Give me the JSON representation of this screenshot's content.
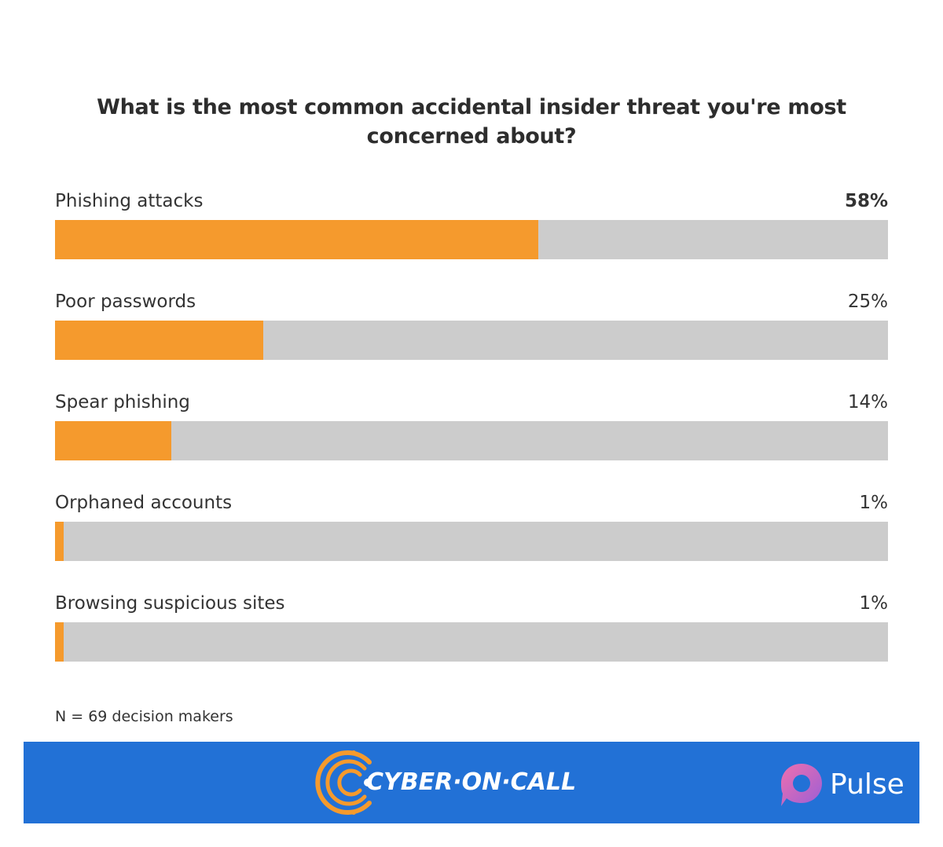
{
  "chart_data": {
    "type": "bar",
    "orientation": "horizontal",
    "title": "What is the most common accidental insider threat you're most concerned about?",
    "categories": [
      "Phishing attacks",
      "Poor passwords",
      "Spear phishing",
      "Orphaned accounts",
      "Browsing suspicious sites"
    ],
    "values": [
      58,
      25,
      14,
      1,
      1
    ],
    "value_labels": [
      "58%",
      "25%",
      "14%",
      "1%",
      "1%"
    ],
    "highlight_index": 0,
    "xlim": [
      0,
      100
    ],
    "bar_color": "#f59a2d",
    "track_color": "#cccccc",
    "note": "N = 69 decision makers"
  },
  "footer": {
    "background": "#2271d6",
    "brand": "CYBER·ON·CALL",
    "brand_icon": "cyber-on-call-logo",
    "partner": "Pulse",
    "partner_icon": "pulse-speech-bubble-logo"
  }
}
